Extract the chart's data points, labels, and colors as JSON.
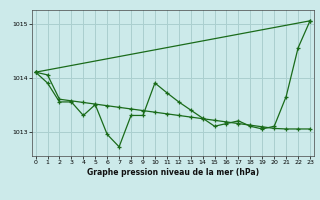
{
  "title": "Graphe pression niveau de la mer (hPa)",
  "bg_color": "#cceaea",
  "grid_color": "#aacfcf",
  "line_color": "#1a6b1a",
  "ylim": [
    1012.55,
    1015.25
  ],
  "yticks": [
    1013,
    1014,
    1015
  ],
  "xlim": [
    -0.3,
    23.3
  ],
  "xticks": [
    0,
    1,
    2,
    3,
    4,
    5,
    6,
    7,
    8,
    9,
    10,
    11,
    12,
    13,
    14,
    15,
    16,
    17,
    18,
    19,
    20,
    21,
    22,
    23
  ],
  "series1_x": [
    0,
    1,
    2,
    3,
    4,
    5,
    6,
    7,
    8,
    9,
    10,
    11,
    12,
    13,
    14,
    15,
    16,
    17,
    18,
    19,
    20,
    21,
    22,
    23
  ],
  "series1_y": [
    1014.1,
    1013.9,
    1013.55,
    1013.55,
    1013.3,
    1013.5,
    1012.95,
    1012.72,
    1013.3,
    1013.3,
    1013.9,
    1013.72,
    1013.55,
    1013.4,
    1013.25,
    1013.1,
    1013.15,
    1013.2,
    1013.1,
    1013.05,
    1013.1,
    1013.65,
    1014.55,
    1015.05
  ],
  "series2_x": [
    0,
    1,
    2,
    3,
    4,
    5,
    6,
    7,
    8,
    9,
    10,
    11,
    12,
    13,
    14,
    15,
    16,
    17,
    18,
    19,
    20,
    21,
    22,
    23
  ],
  "series2_y": [
    1014.1,
    1014.05,
    1013.6,
    1013.57,
    1013.54,
    1013.51,
    1013.48,
    1013.45,
    1013.42,
    1013.39,
    1013.36,
    1013.33,
    1013.3,
    1013.27,
    1013.24,
    1013.21,
    1013.18,
    1013.15,
    1013.12,
    1013.09,
    1013.06,
    1013.05,
    1013.05,
    1013.05
  ],
  "series3_x": [
    0,
    23
  ],
  "series3_y": [
    1014.1,
    1015.05
  ]
}
